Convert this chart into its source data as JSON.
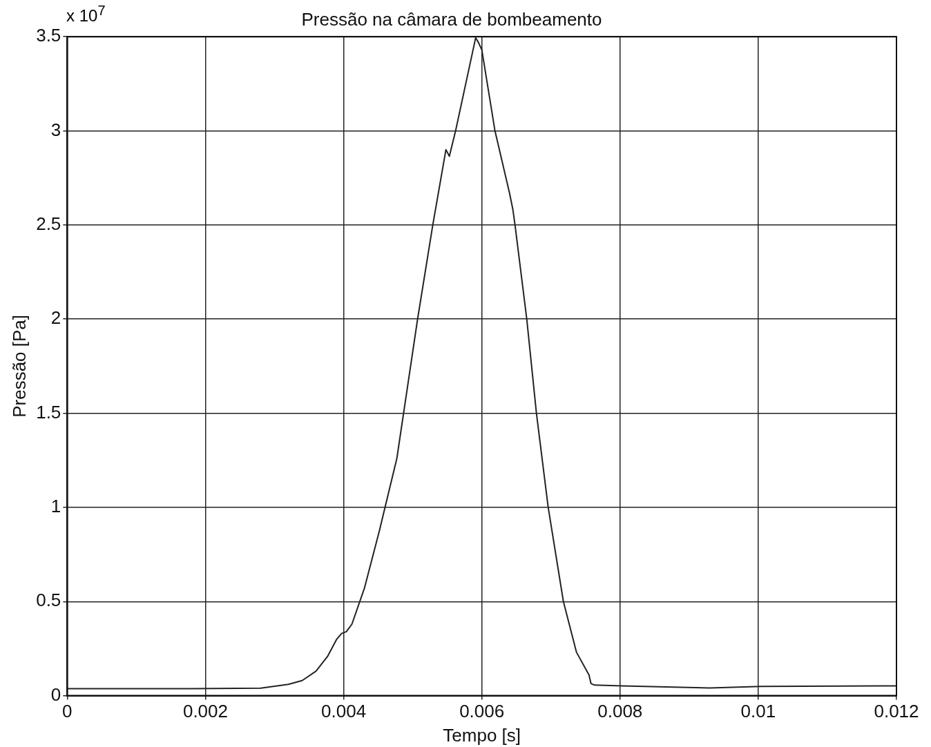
{
  "chart_data": {
    "type": "line",
    "title": "Pressão na câmara de bombeamento",
    "xlabel": "Tempo [s]",
    "ylabel": "Pressão [Pa]",
    "annotations": [
      "x 10$^{7}$"
    ],
    "series": [
      {
        "color": "#222222",
        "x": [
          0,
          0.0018,
          0.0028,
          0.0032,
          0.0034,
          0.0036,
          0.00377,
          0.0039,
          0.00397,
          0.00404,
          0.00412,
          0.0043,
          0.00452,
          0.00477,
          0.00507,
          0.00529,
          0.00548,
          0.00553,
          0.00562,
          0.00591,
          0.00595,
          0.006,
          0.00619,
          0.0064,
          0.00645,
          0.00648,
          0.00665,
          0.00679,
          0.00696,
          0.00718,
          0.00737,
          0.00755,
          0.00758,
          0.00763,
          0.00803,
          0.0093,
          0.01004,
          0.012
        ],
        "values": [
          0.037,
          0.037,
          0.04,
          0.06,
          0.08,
          0.13,
          0.21,
          0.3,
          0.33,
          0.34,
          0.38,
          0.57,
          0.88,
          1.26,
          2.0,
          2.5,
          2.9,
          2.865,
          3.0,
          3.494,
          3.47,
          3.43,
          3.0,
          2.67,
          2.58,
          2.5,
          2.0,
          1.5,
          1.0,
          0.5,
          0.23,
          0.11,
          0.064,
          0.056,
          0.052,
          0.041,
          0.049,
          0.052
        ]
      }
    ],
    "xlim": [
      0,
      0.012
    ],
    "xticks": [
      0,
      0.002,
      0.004,
      0.006,
      0.008,
      0.01,
      0.012
    ],
    "ylim": [
      0,
      3.5
    ],
    "yticks": [
      0,
      0.5,
      1,
      1.5,
      2,
      2.5,
      3,
      3.5
    ],
    "grid": true,
    "legend": false,
    "marker": "none",
    "line_style": "solid"
  }
}
